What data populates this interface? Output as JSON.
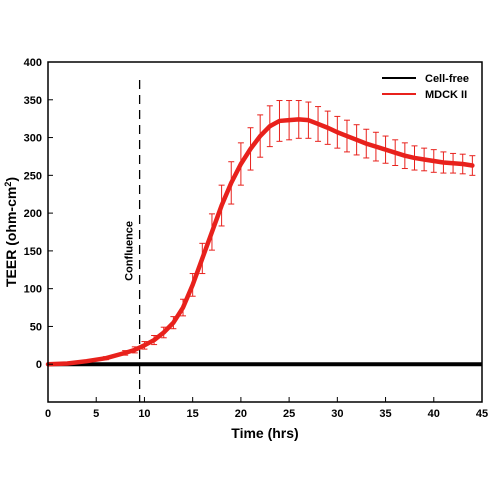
{
  "chart_data": {
    "type": "line",
    "title": "",
    "xlabel": "Time (hrs)",
    "ylabel_main": "TEER (ohm-cm",
    "ylabel_sup": "2",
    "ylabel_close": ")",
    "xlim": [
      0,
      45
    ],
    "ylim": [
      -50,
      400
    ],
    "x_ticks": [
      0,
      5,
      10,
      15,
      20,
      25,
      30,
      35,
      40,
      45
    ],
    "y_ticks": [
      0,
      50,
      100,
      150,
      200,
      250,
      300,
      350,
      400
    ],
    "grid": false,
    "legend_position": "top-right",
    "annotation": {
      "text": "Confluence",
      "x": 9.5
    },
    "series": [
      {
        "name": "Cell-free",
        "color": "#000000",
        "x": [
          0,
          45
        ],
        "y": [
          0,
          0
        ]
      },
      {
        "name": "MDCK II",
        "color": "#e8211c",
        "x": [
          0,
          2,
          4,
          6,
          8,
          9,
          10,
          11,
          12,
          13,
          14,
          15,
          16,
          17,
          18,
          19,
          20,
          21,
          22,
          23,
          24,
          25,
          26,
          27,
          28,
          29,
          30,
          31,
          32,
          33,
          34,
          35,
          36,
          37,
          38,
          39,
          40,
          41,
          42,
          43,
          44
        ],
        "y": [
          0,
          1,
          4,
          8,
          15,
          19,
          25,
          32,
          42,
          55,
          75,
          105,
          140,
          175,
          210,
          240,
          265,
          285,
          302,
          315,
          322,
          323,
          324,
          323,
          318,
          313,
          307,
          302,
          297,
          292,
          288,
          284,
          280,
          276,
          273,
          271,
          269,
          267,
          266,
          265,
          263
        ],
        "err": [
          0,
          0,
          1,
          2,
          3,
          4,
          5,
          6,
          7,
          8,
          11,
          15,
          20,
          24,
          27,
          28,
          28,
          28,
          28,
          27,
          27,
          26,
          25,
          24,
          23,
          22,
          21,
          21,
          20,
          19,
          19,
          18,
          17,
          17,
          16,
          15,
          15,
          14,
          13,
          13,
          13
        ]
      }
    ]
  }
}
